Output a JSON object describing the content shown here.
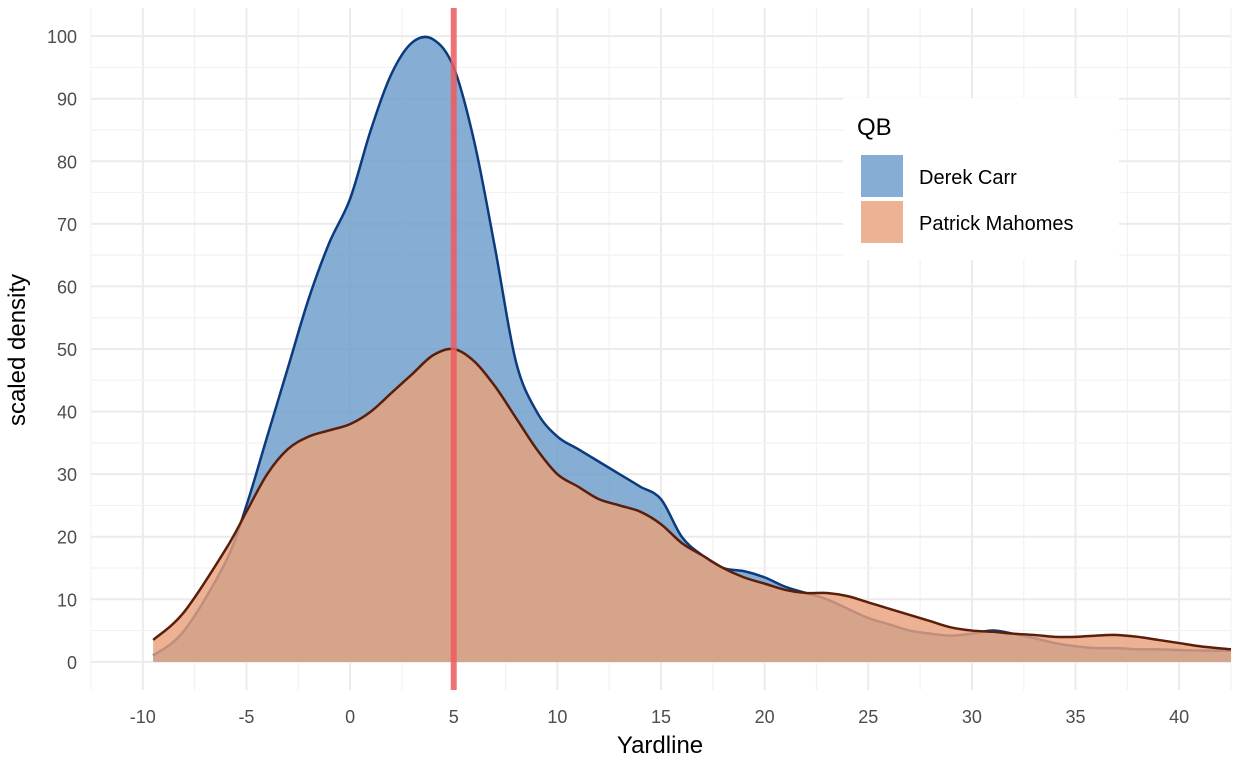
{
  "chart_data": {
    "type": "area",
    "xlabel": "Yardline",
    "ylabel": "scaled density",
    "xlim": [
      -12.5,
      42.5
    ],
    "ylim": [
      -4.5,
      104.5
    ],
    "x_ticks": [
      -10,
      -5,
      0,
      5,
      10,
      15,
      20,
      25,
      30,
      35,
      40
    ],
    "y_ticks": [
      0,
      10,
      20,
      30,
      40,
      50,
      60,
      70,
      80,
      90,
      100
    ],
    "grid": true,
    "legend": {
      "title": "QB",
      "position": "top-right",
      "entries": [
        "Derek Carr",
        "Patrick Mahomes"
      ]
    },
    "reference_line": {
      "x": 5,
      "color": "#ee5a5f"
    },
    "series": [
      {
        "name": "Derek Carr",
        "fill": "#6b9bc9",
        "line": "#0b3a7e",
        "x": [
          -9.5,
          -8,
          -6,
          -5,
          -4,
          -3,
          -2,
          -1,
          0,
          1,
          2,
          3,
          4,
          5,
          6,
          7,
          8,
          9,
          10,
          11,
          12,
          13,
          14,
          15,
          16,
          17,
          18,
          19,
          20,
          21,
          22,
          23,
          24,
          25,
          26,
          27,
          28,
          29,
          30,
          31,
          32,
          33,
          34,
          35,
          36,
          37,
          38,
          39,
          40,
          41,
          42.5
        ],
        "y": [
          1,
          5,
          16,
          25,
          36,
          47,
          58,
          67,
          74,
          85,
          94,
          99,
          99.5,
          95,
          83,
          66,
          48,
          40,
          36,
          34,
          32,
          30,
          28,
          26,
          20,
          17,
          15,
          14.5,
          13.5,
          12,
          11,
          10,
          8.5,
          7,
          6,
          5,
          4.5,
          4.2,
          4.5,
          5,
          4.5,
          3.8,
          3,
          2.5,
          2.2,
          2.2,
          2,
          2,
          1.9,
          1.8,
          1.8
        ]
      },
      {
        "name": "Patrick Mahomes",
        "fill": "#e8a17b",
        "line": "#5a1e0a",
        "x": [
          -9.5,
          -8,
          -6,
          -5,
          -4,
          -3,
          -2,
          -1,
          0,
          1,
          2,
          3,
          4,
          5,
          6,
          7,
          8,
          9,
          10,
          11,
          12,
          13,
          14,
          15,
          16,
          17,
          18,
          19,
          20,
          21,
          22,
          23,
          24,
          25,
          26,
          27,
          28,
          29,
          30,
          31,
          32,
          33,
          34,
          35,
          36,
          37,
          38,
          39,
          40,
          41,
          42.5
        ],
        "y": [
          3.5,
          8,
          18,
          24,
          30,
          34,
          36,
          37,
          38,
          40,
          43,
          46,
          49,
          50,
          48,
          44,
          39,
          34,
          30,
          28,
          26,
          25,
          24,
          22,
          19,
          17,
          15,
          13.5,
          12.5,
          11.5,
          11,
          11,
          10.5,
          9.5,
          8.5,
          7.5,
          6.5,
          5.5,
          5,
          4.8,
          4.5,
          4.3,
          4,
          4,
          4.2,
          4.3,
          4,
          3.5,
          3,
          2.5,
          2
        ]
      }
    ]
  }
}
